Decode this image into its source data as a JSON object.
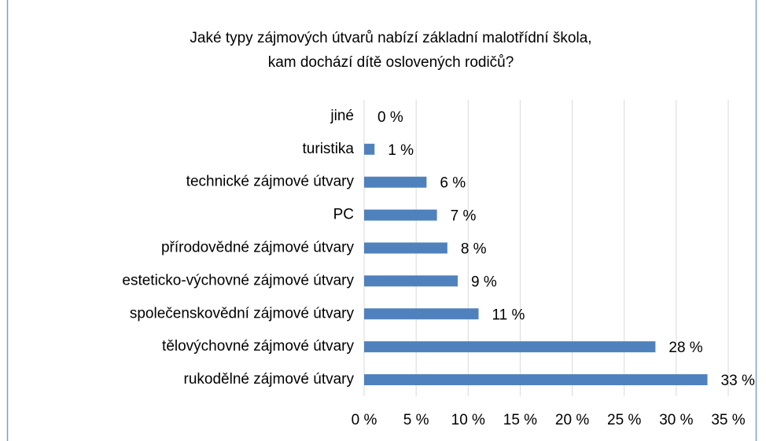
{
  "chart_data": {
    "type": "bar",
    "orientation": "horizontal",
    "title": [
      "Jaké typy zájmových útvarů nabízí základní malotřídní škola,",
      "kam dochází dítě oslovených rodičů?"
    ],
    "categories": [
      "jiné",
      "turistika",
      "technické zájmové útvary",
      "PC",
      "přírodovědné zájmové útvary",
      "esteticko-výchovné zájmové útvary",
      "společenskovědní zájmové útvary",
      "tělovýchovné zájmové útvary",
      "rukodělné zájmové útvary"
    ],
    "values": [
      0,
      1,
      6,
      7,
      8,
      9,
      11,
      28,
      33
    ],
    "value_labels": [
      "0 %",
      "1 %",
      "6 %",
      "7 %",
      "8 %",
      "9 %",
      "11 %",
      "28 %",
      "33 %"
    ],
    "color": "#4f81bd",
    "xlim": [
      0,
      35
    ],
    "xticks": [
      {
        "value": 0,
        "label": "0 %"
      },
      {
        "value": 5,
        "label": "5 %"
      },
      {
        "value": 10,
        "label": "10 %"
      },
      {
        "value": 15,
        "label": "15 %"
      },
      {
        "value": 20,
        "label": "20 %"
      },
      {
        "value": 25,
        "label": "25 %"
      },
      {
        "value": 30,
        "label": "30 %"
      },
      {
        "value": 35,
        "label": "35 %"
      }
    ],
    "grid": true
  }
}
